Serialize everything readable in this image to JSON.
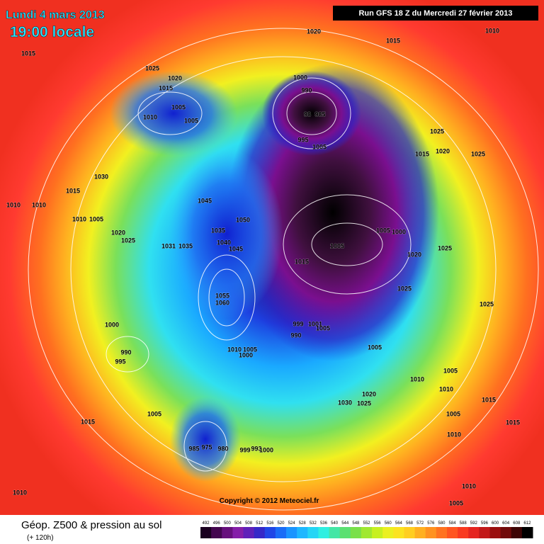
{
  "header": {
    "date": "Lundi 4 mars 2013",
    "time": "19:00 locale",
    "run": "Run GFS 18 Z du Mercredi 27 février 2013"
  },
  "copyright": "Copyright © 2012 Meteociel.fr",
  "footer": {
    "title": "Géop. Z500 & pression au sol",
    "lead": "(+ 120h)"
  },
  "colorbar": {
    "labels": [
      492,
      496,
      500,
      504,
      508,
      512,
      516,
      520,
      524,
      528,
      532,
      536,
      540,
      544,
      548,
      552,
      556,
      560,
      564,
      568,
      572,
      576,
      580,
      584,
      588,
      592,
      596,
      600,
      604,
      608,
      612
    ]
  },
  "pressure_labels": [
    "1020",
    "1015",
    "1010",
    "1015",
    "1025",
    "1020",
    "1015",
    "1000",
    "990",
    "98",
    "985",
    "1005",
    "1010",
    "1005",
    "995",
    "1005",
    "1025",
    "1015",
    "1020",
    "1025",
    "1030",
    "1015",
    "1010",
    "1010",
    "1045",
    "1010",
    "1005",
    "1050",
    "1020",
    "1025",
    "1035",
    "1005",
    "1000",
    "1040",
    "1031",
    "1035",
    "1045",
    "1005",
    "1020",
    "1025",
    "1015",
    "1025",
    "1055",
    "1060",
    "1025",
    "999",
    "1001",
    "1005",
    "990",
    "1000",
    "1005",
    "1010",
    "1005",
    "1000",
    "990",
    "995",
    "1005",
    "1010",
    "1010",
    "1020",
    "1030",
    "1025",
    "1015",
    "1005",
    "1015",
    "1005",
    "1010",
    "1015",
    "985",
    "975",
    "980",
    "999",
    "993",
    "1000",
    "1010",
    "1010",
    "1005"
  ]
}
